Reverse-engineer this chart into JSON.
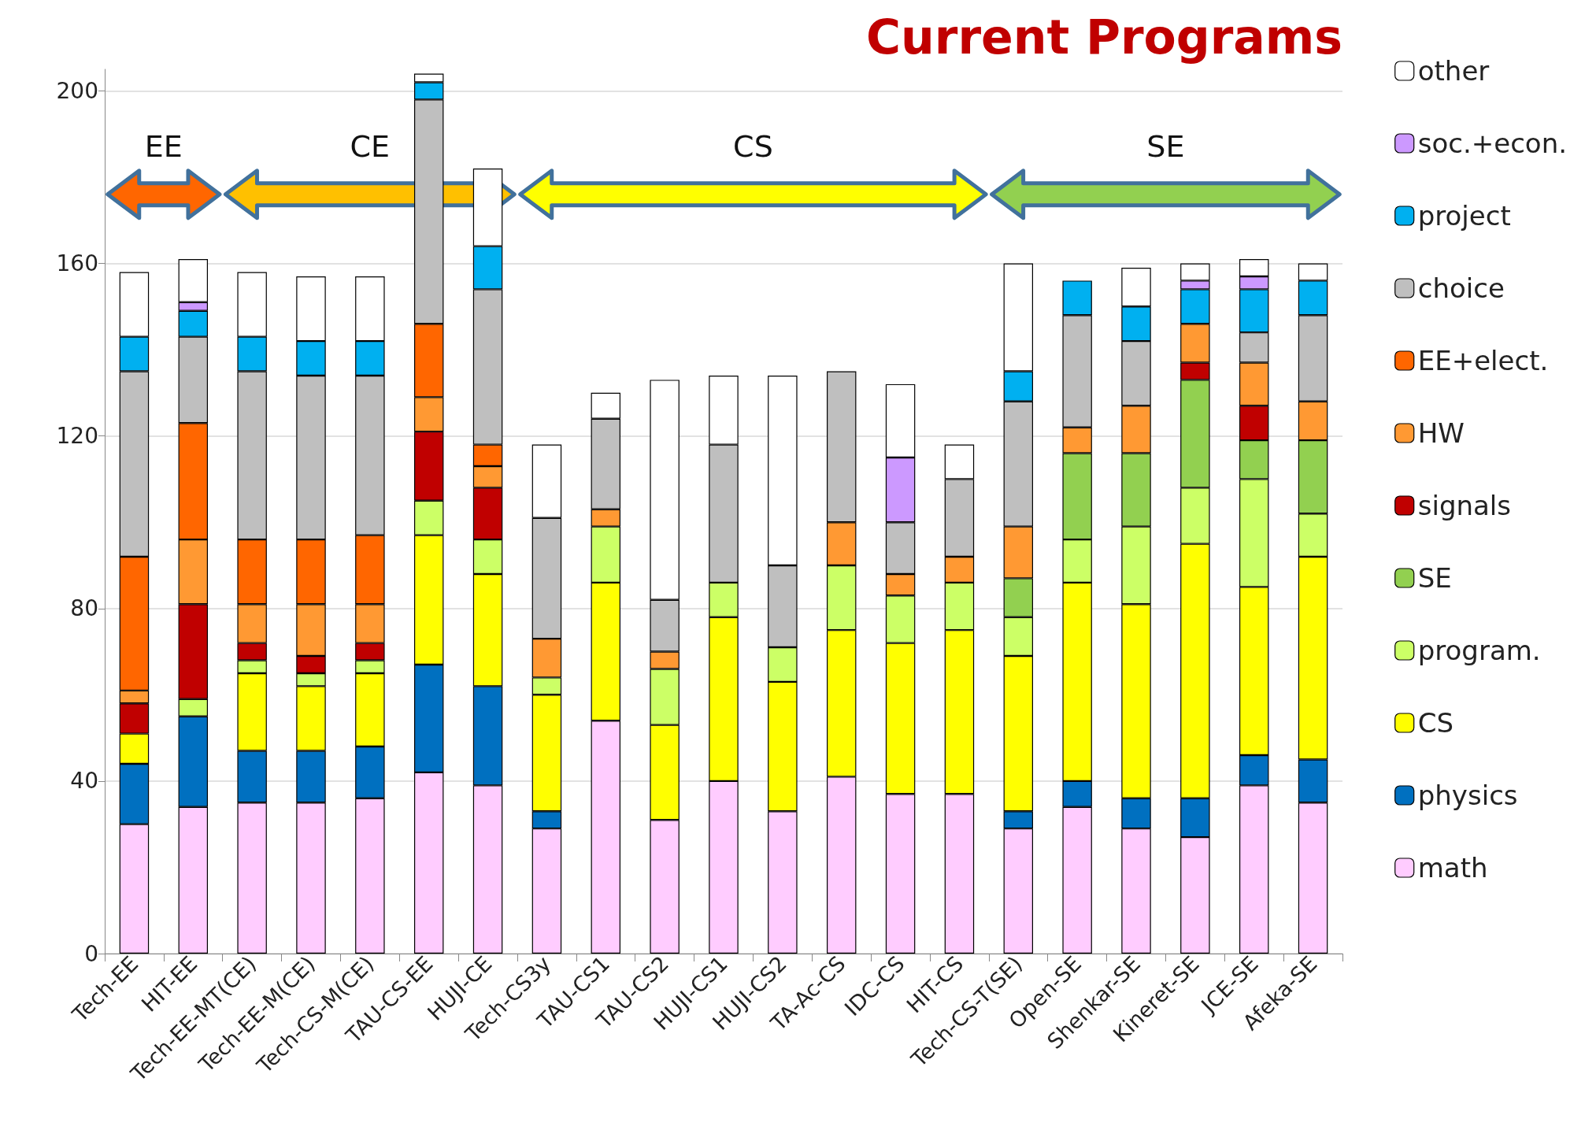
{
  "chart_data": {
    "type": "bar",
    "title": "Current Programs",
    "stacked": true,
    "categories": [
      "Tech-EE",
      "HIT-EE",
      "Tech-EE-MT(CE)",
      "Tech-EE-M(CE)",
      "Tech-CS-M(CE)",
      "TAU-CS-EE",
      "HUJI-CE",
      "Tech-CS3y",
      "TAU-CS1",
      "TAU-CS2",
      "HUJI-CS1",
      "HUJI-CS2",
      "TA-Ac-CS",
      "IDC-CS",
      "HIT-CS",
      "Tech-CS-T(SE)",
      "Open-SE",
      "Shenkar-SE",
      "Kineret-SE",
      "JCE-SE",
      "Afeka-SE"
    ],
    "series": [
      {
        "name": "math",
        "color": "#ffccff",
        "values": [
          30,
          34,
          35,
          35,
          36,
          42,
          39,
          29,
          54,
          31,
          40,
          33,
          41,
          37,
          37,
          29,
          34,
          29,
          27,
          39,
          35
        ]
      },
      {
        "name": "physics",
        "color": "#0070c0",
        "values": [
          14,
          21,
          12,
          12,
          12,
          25,
          23,
          4,
          null,
          null,
          null,
          null,
          null,
          null,
          null,
          4,
          6,
          7,
          9,
          7,
          10
        ]
      },
      {
        "name": "CS",
        "color": "#ffff00",
        "values": [
          7,
          null,
          18,
          15,
          17,
          30,
          26,
          27,
          32,
          22,
          38,
          30,
          34,
          35,
          38,
          36,
          46,
          45,
          59,
          39,
          47
        ]
      },
      {
        "name": "program.",
        "color": "#ccff66",
        "values": [
          null,
          4,
          3,
          3,
          3,
          8,
          8,
          4,
          13,
          13,
          8,
          8,
          15,
          11,
          11,
          9,
          10,
          18,
          13,
          25,
          10
        ]
      },
      {
        "name": "SE",
        "color": "#92d050",
        "values": [
          null,
          null,
          null,
          null,
          null,
          null,
          null,
          null,
          null,
          null,
          null,
          null,
          null,
          null,
          null,
          9,
          20,
          17,
          25,
          9,
          17
        ]
      },
      {
        "name": "signals",
        "color": "#c00000",
        "values": [
          7,
          22,
          4,
          4,
          4,
          16,
          12,
          null,
          null,
          null,
          null,
          null,
          null,
          null,
          null,
          null,
          null,
          null,
          4,
          8,
          null
        ]
      },
      {
        "name": "HW",
        "color": "#ff9933",
        "values": [
          3,
          15,
          9,
          12,
          9,
          8,
          5,
          9,
          4,
          4,
          null,
          null,
          10,
          5,
          6,
          12,
          6,
          11,
          9,
          10,
          9
        ]
      },
      {
        "name": "EE+elect.",
        "color": "#ff6600",
        "values": [
          31,
          27,
          15,
          15,
          16,
          17,
          5,
          null,
          null,
          null,
          null,
          null,
          null,
          null,
          null,
          null,
          null,
          null,
          null,
          null,
          null
        ]
      },
      {
        "name": "choice",
        "color": "#bfbfbf",
        "values": [
          43,
          20,
          39,
          38,
          37,
          52,
          36,
          28,
          21,
          12,
          32,
          19,
          35,
          12,
          18,
          29,
          26,
          15,
          null,
          7,
          20
        ]
      },
      {
        "name": "project",
        "color": "#00b0f0",
        "values": [
          8,
          6,
          8,
          8,
          8,
          4,
          10,
          null,
          null,
          null,
          null,
          null,
          null,
          null,
          null,
          7,
          8,
          8,
          8,
          10,
          8
        ]
      },
      {
        "name": "soc.+econ.",
        "color": "#cc99ff",
        "values": [
          null,
          2,
          null,
          null,
          null,
          null,
          null,
          null,
          null,
          null,
          null,
          null,
          null,
          15,
          null,
          null,
          null,
          null,
          2,
          3,
          null
        ]
      },
      {
        "name": "other",
        "color": "#ffffff",
        "values": [
          15,
          10,
          15,
          15,
          15,
          2,
          18,
          17,
          6,
          51,
          16,
          44,
          null,
          17,
          8,
          25,
          null,
          9,
          4,
          4,
          4
        ]
      }
    ],
    "ylim": [
      0,
      205
    ],
    "yticks": [
      0,
      40,
      80,
      120,
      160,
      200
    ],
    "grid": "y",
    "legend": "right",
    "annotations": [
      "EE",
      "CE",
      "CS",
      "SE"
    ]
  }
}
